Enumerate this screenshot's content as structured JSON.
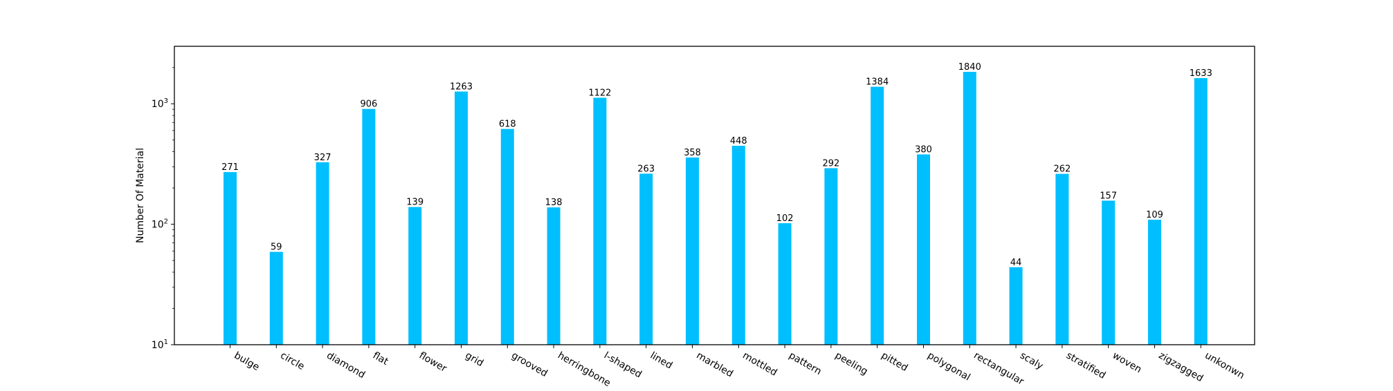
{
  "chart_data": {
    "type": "bar",
    "title": "",
    "xlabel": "",
    "ylabel": "Number Of Material",
    "yscale": "log",
    "ylim": [
      10,
      3000
    ],
    "grid": false,
    "legend": "none",
    "bar_color": "#00bfff",
    "yticks": [
      {
        "value": 10,
        "base": "10",
        "exp": "1"
      },
      {
        "value": 100,
        "base": "10",
        "exp": "2"
      },
      {
        "value": 1000,
        "base": "10",
        "exp": "3"
      }
    ],
    "categories": [
      "bulge",
      "circle",
      "diamond",
      "flat",
      "flower",
      "grid",
      "grooved",
      "herringbone",
      "l-shaped",
      "lined",
      "marbled",
      "mottled",
      "pattern",
      "peeling",
      "pitted",
      "polygonal",
      "rectangular",
      "scaly",
      "stratified",
      "woven",
      "zigzagged",
      "unkonwn"
    ],
    "values": [
      271,
      59,
      327,
      906,
      139,
      1263,
      618,
      138,
      1122,
      263,
      358,
      448,
      102,
      292,
      1384,
      380,
      1840,
      44,
      262,
      157,
      109,
      1633
    ]
  }
}
